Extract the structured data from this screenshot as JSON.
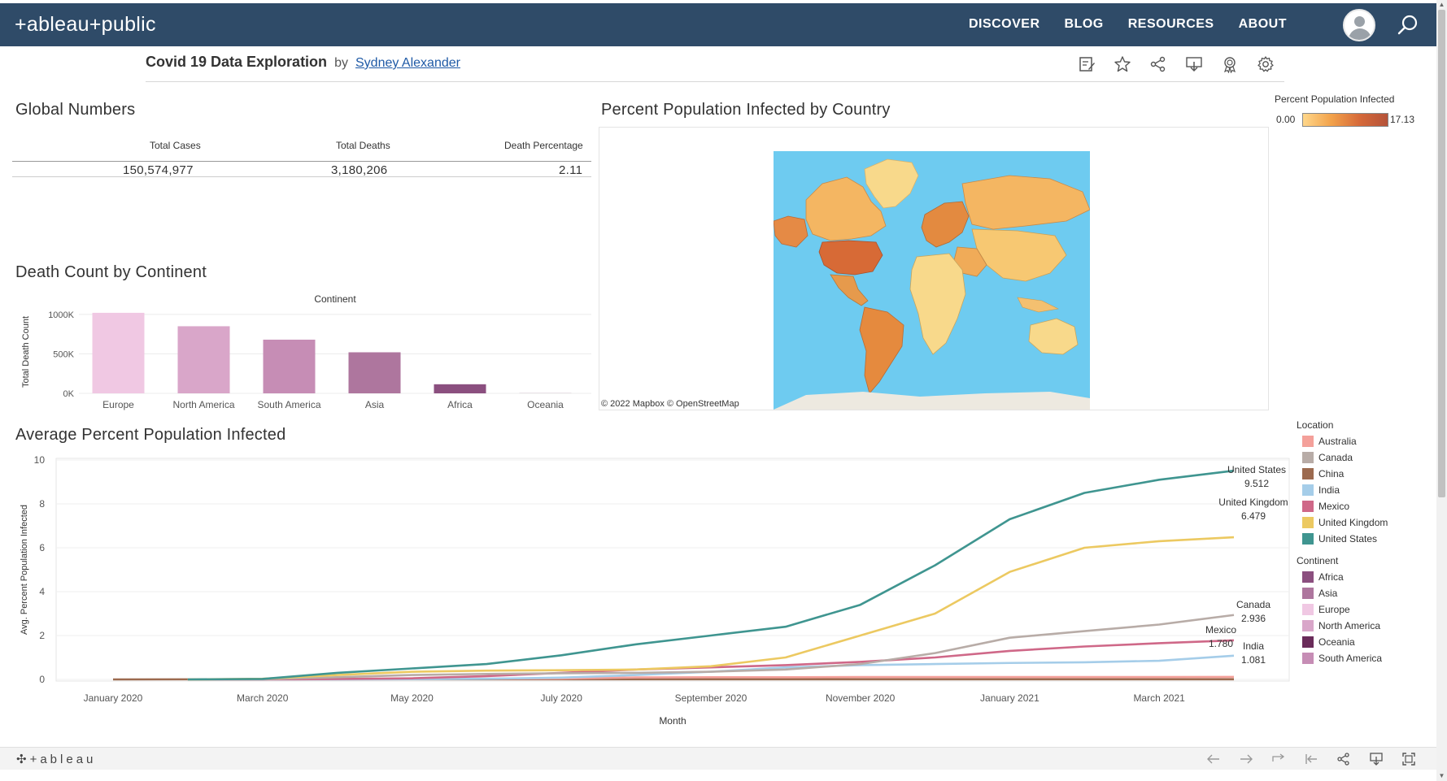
{
  "nav": {
    "brand": "+ableau+public",
    "links": [
      "DISCOVER",
      "BLOG",
      "RESOURCES",
      "ABOUT"
    ]
  },
  "viz": {
    "title": "Covid 19 Data Exploration",
    "by": "by",
    "author": "Sydney Alexander"
  },
  "global_numbers": {
    "title": "Global Numbers",
    "headers": [
      "Total Cases",
      "Total Deaths",
      "Death Percentage"
    ],
    "values": [
      "150,574,977",
      "3,180,206",
      "2.11"
    ]
  },
  "map": {
    "title": "Percent Population Infected by Country",
    "credit": "© 2022 Mapbox  © OpenStreetMap",
    "legend_title": "Percent Population Infected",
    "legend_min": "0.00",
    "legend_max": "17.13"
  },
  "legend": {
    "location_title": "Location",
    "locations": [
      {
        "name": "Australia",
        "color": "#f4a09a"
      },
      {
        "name": "Canada",
        "color": "#b8aca7"
      },
      {
        "name": "China",
        "color": "#9c6a4f"
      },
      {
        "name": "India",
        "color": "#a5cde9"
      },
      {
        "name": "Mexico",
        "color": "#cf6888"
      },
      {
        "name": "United Kingdom",
        "color": "#ecc961"
      },
      {
        "name": "United States",
        "color": "#3f9590"
      }
    ],
    "continent_title": "Continent",
    "continents": [
      {
        "name": "Africa",
        "color": "#8b4f7f"
      },
      {
        "name": "Asia",
        "color": "#ae769e"
      },
      {
        "name": "Europe",
        "color": "#f0c8e3"
      },
      {
        "name": "North America",
        "color": "#d9a6c9"
      },
      {
        "name": "Oceania",
        "color": "#6a2c5a"
      },
      {
        "name": "South America",
        "color": "#c68db5"
      }
    ]
  },
  "chart_data": [
    {
      "type": "bar",
      "title": "Death Count by Continent",
      "xlabel": "Continent",
      "ylabel": "Total Death Count",
      "categories": [
        "Europe",
        "North America",
        "South America",
        "Asia",
        "Africa",
        "Oceania"
      ],
      "values": [
        1020000,
        850000,
        680000,
        520000,
        115000,
        1000
      ],
      "colors": [
        "#f0c8e3",
        "#d9a6c9",
        "#c68db5",
        "#ae769e",
        "#8b4f7f",
        "#6a2c5a"
      ],
      "yticks": [
        "0K",
        "500K",
        "1000K"
      ],
      "ylim": [
        0,
        1050000
      ]
    },
    {
      "type": "line",
      "title": "Average Percent Population Infected",
      "xlabel": "Month",
      "ylabel": "Avg. Percent Population Infected",
      "x": [
        "2020-01",
        "2020-02",
        "2020-03",
        "2020-04",
        "2020-05",
        "2020-06",
        "2020-07",
        "2020-08",
        "2020-09",
        "2020-10",
        "2020-11",
        "2020-12",
        "2021-01",
        "2021-02",
        "2021-03",
        "2021-04"
      ],
      "xticks": [
        "January 2020",
        "March 2020",
        "May 2020",
        "July 2020",
        "September 2020",
        "November 2020",
        "January 2021",
        "March 2021"
      ],
      "yticks": [
        "0",
        "2",
        "4",
        "6",
        "8",
        "10"
      ],
      "ylim": [
        0,
        10
      ],
      "series": [
        {
          "name": "United States",
          "color": "#3f9590",
          "label_value": "9.512",
          "values": [
            null,
            0.0,
            0.02,
            0.3,
            0.5,
            0.7,
            1.1,
            1.6,
            2.0,
            2.4,
            3.4,
            5.2,
            7.3,
            8.5,
            9.1,
            9.512
          ]
        },
        {
          "name": "United Kingdom",
          "color": "#ecc961",
          "label_value": "6.479",
          "values": [
            null,
            0.0,
            0.03,
            0.2,
            0.35,
            0.4,
            0.42,
            0.45,
            0.6,
            1.0,
            2.0,
            3.0,
            4.9,
            6.0,
            6.3,
            6.479
          ]
        },
        {
          "name": "Canada",
          "color": "#b8aca7",
          "label_value": "2.936",
          "values": [
            null,
            0.0,
            0.01,
            0.1,
            0.2,
            0.25,
            0.28,
            0.3,
            0.35,
            0.45,
            0.7,
            1.2,
            1.9,
            2.2,
            2.5,
            2.936
          ]
        },
        {
          "name": "Mexico",
          "color": "#cf6888",
          "label_value": "1.780",
          "values": [
            null,
            0.0,
            0.0,
            0.02,
            0.05,
            0.15,
            0.3,
            0.45,
            0.55,
            0.65,
            0.8,
            1.0,
            1.3,
            1.5,
            1.65,
            1.78
          ]
        },
        {
          "name": "India",
          "color": "#a5cde9",
          "label_value": "1.081",
          "values": [
            null,
            0.0,
            0.0,
            0.0,
            0.01,
            0.03,
            0.08,
            0.2,
            0.35,
            0.55,
            0.65,
            0.7,
            0.75,
            0.78,
            0.85,
            1.081
          ]
        },
        {
          "name": "Australia",
          "color": "#f4a09a",
          "label_value": "",
          "values": [
            null,
            0.0,
            0.01,
            0.02,
            0.03,
            0.03,
            0.04,
            0.09,
            0.1,
            0.1,
            0.11,
            0.11,
            0.11,
            0.11,
            0.11,
            0.115
          ]
        },
        {
          "name": "China",
          "color": "#9c6a4f",
          "label_value": "",
          "values": [
            0.0,
            0.005,
            0.006,
            0.006,
            0.006,
            0.006,
            0.006,
            0.006,
            0.006,
            0.006,
            0.006,
            0.006,
            0.007,
            0.007,
            0.007,
            0.007
          ]
        }
      ]
    }
  ]
}
